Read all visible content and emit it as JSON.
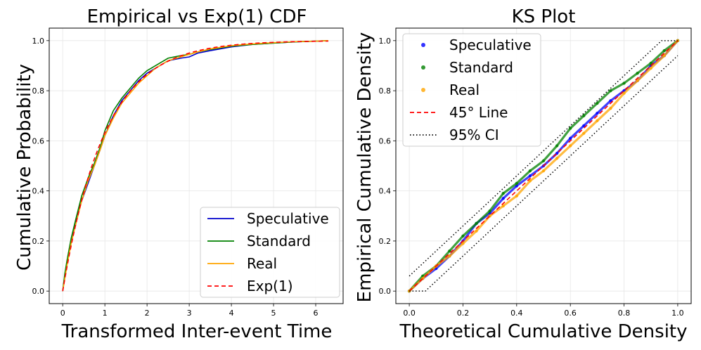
{
  "chart_data": [
    {
      "type": "line",
      "title": "Empirical vs Exp(1) CDF",
      "xlabel": "Transformed Inter-event Time",
      "ylabel": "Cumulative Probability",
      "xlim": [
        -0.32,
        6.65
      ],
      "ylim": [
        -0.05,
        1.05
      ],
      "xticks": [
        0,
        1,
        2,
        3,
        4,
        5,
        6
      ],
      "yticks": [
        0.0,
        0.2,
        0.4,
        0.6,
        0.8,
        1.0
      ],
      "xtick_labels": [
        "0",
        "1",
        "2",
        "3",
        "4",
        "5",
        "6"
      ],
      "ytick_labels": [
        "0.0",
        "0.2",
        "0.4",
        "0.6",
        "0.8",
        "1.0"
      ],
      "grid": true,
      "legend_position": "bottom-right",
      "series": [
        {
          "name": "Speculative",
          "color": "#0000cc",
          "style": "solid",
          "x": [
            0,
            0.05,
            0.1,
            0.2,
            0.3,
            0.45,
            0.6,
            0.75,
            0.9,
            1.0,
            1.2,
            1.4,
            1.6,
            1.8,
            2.0,
            2.2,
            2.5,
            2.8,
            3.0,
            3.2,
            3.5,
            4.0,
            4.5,
            5.0,
            5.5,
            6.0,
            6.3
          ],
          "y": [
            0,
            0.06,
            0.11,
            0.2,
            0.27,
            0.36,
            0.43,
            0.5,
            0.57,
            0.62,
            0.7,
            0.76,
            0.8,
            0.84,
            0.87,
            0.89,
            0.92,
            0.93,
            0.935,
            0.95,
            0.96,
            0.975,
            0.985,
            0.99,
            0.995,
            0.998,
            1.0
          ]
        },
        {
          "name": "Standard",
          "color": "#008000",
          "style": "solid",
          "x": [
            0,
            0.05,
            0.1,
            0.2,
            0.3,
            0.45,
            0.6,
            0.75,
            0.9,
            1.0,
            1.2,
            1.4,
            1.6,
            1.8,
            2.0,
            2.2,
            2.5,
            2.8,
            3.0,
            3.2,
            3.5,
            4.0,
            4.5,
            5.0,
            5.5,
            6.0,
            6.3
          ],
          "y": [
            0,
            0.07,
            0.12,
            0.21,
            0.28,
            0.38,
            0.45,
            0.51,
            0.58,
            0.64,
            0.72,
            0.77,
            0.81,
            0.85,
            0.88,
            0.9,
            0.93,
            0.94,
            0.945,
            0.955,
            0.965,
            0.978,
            0.985,
            0.99,
            0.995,
            0.998,
            1.0
          ]
        },
        {
          "name": "Real",
          "color": "#ffa500",
          "style": "solid",
          "x": [
            0,
            0.05,
            0.1,
            0.2,
            0.3,
            0.45,
            0.6,
            0.75,
            0.9,
            1.0,
            1.2,
            1.4,
            1.6,
            1.8,
            2.0,
            2.2,
            2.5,
            2.8,
            3.0,
            3.2,
            3.5,
            4.0,
            4.5,
            5.0,
            5.5,
            6.0,
            6.3
          ],
          "y": [
            0,
            0.05,
            0.1,
            0.19,
            0.26,
            0.36,
            0.44,
            0.5,
            0.57,
            0.62,
            0.69,
            0.75,
            0.79,
            0.83,
            0.86,
            0.89,
            0.92,
            0.935,
            0.945,
            0.955,
            0.967,
            0.98,
            0.987,
            0.992,
            0.996,
            0.998,
            1.0
          ]
        },
        {
          "name": "Exp(1)",
          "color": "#ff0000",
          "style": "dashed",
          "function": "1 - exp(-x)",
          "x": [
            0,
            6.3
          ]
        }
      ]
    },
    {
      "type": "scatter",
      "title": "KS Plot",
      "xlabel": "Theoretical Cumulative Density",
      "ylabel": "Empirical Cumulative Density",
      "xlim": [
        -0.05,
        1.05
      ],
      "ylim": [
        -0.05,
        1.05
      ],
      "xticks": [
        0.0,
        0.2,
        0.4,
        0.6,
        0.8,
        1.0
      ],
      "yticks": [
        0.0,
        0.2,
        0.4,
        0.6,
        0.8,
        1.0
      ],
      "xtick_labels": [
        "0.0",
        "0.2",
        "0.4",
        "0.6",
        "0.8",
        "1.0"
      ],
      "ytick_labels": [
        "0.0",
        "0.2",
        "0.4",
        "0.6",
        "0.8",
        "1.0"
      ],
      "grid": true,
      "legend_position": "top-left",
      "series": [
        {
          "name": "Speculative",
          "color": "#0000ff",
          "marker": "dot",
          "x": [
            0,
            0.05,
            0.1,
            0.15,
            0.2,
            0.25,
            0.3,
            0.35,
            0.4,
            0.45,
            0.5,
            0.55,
            0.6,
            0.65,
            0.7,
            0.75,
            0.8,
            0.85,
            0.9,
            0.95,
            1.0
          ],
          "y": [
            0,
            0.05,
            0.09,
            0.14,
            0.2,
            0.27,
            0.31,
            0.37,
            0.42,
            0.46,
            0.5,
            0.55,
            0.61,
            0.66,
            0.71,
            0.76,
            0.8,
            0.84,
            0.9,
            0.94,
            1.0
          ]
        },
        {
          "name": "Standard",
          "color": "#008000",
          "marker": "dot",
          "x": [
            0,
            0.05,
            0.1,
            0.15,
            0.2,
            0.25,
            0.3,
            0.35,
            0.4,
            0.45,
            0.5,
            0.55,
            0.6,
            0.65,
            0.7,
            0.75,
            0.8,
            0.85,
            0.9,
            0.95,
            1.0
          ],
          "y": [
            0,
            0.06,
            0.1,
            0.16,
            0.22,
            0.27,
            0.32,
            0.39,
            0.43,
            0.48,
            0.52,
            0.58,
            0.65,
            0.7,
            0.75,
            0.8,
            0.83,
            0.87,
            0.91,
            0.96,
            1.0
          ]
        },
        {
          "name": "Real",
          "color": "#ffa500",
          "marker": "dot",
          "x": [
            0,
            0.05,
            0.1,
            0.15,
            0.2,
            0.25,
            0.3,
            0.35,
            0.4,
            0.45,
            0.5,
            0.55,
            0.6,
            0.65,
            0.7,
            0.75,
            0.8,
            0.85,
            0.9,
            0.95,
            1.0
          ],
          "y": [
            0,
            0.05,
            0.1,
            0.14,
            0.19,
            0.24,
            0.3,
            0.34,
            0.38,
            0.44,
            0.48,
            0.53,
            0.58,
            0.63,
            0.68,
            0.73,
            0.79,
            0.84,
            0.89,
            0.94,
            1.0
          ]
        },
        {
          "name": "45° Line",
          "color": "#ff0000",
          "style": "dashed",
          "x": [
            0,
            1
          ],
          "y": [
            0,
            1
          ]
        },
        {
          "name": "95% CI",
          "color": "#000000",
          "style": "dotted",
          "upper": {
            "x": [
              0,
              0.94,
              1.0
            ],
            "y": [
              0.06,
              1.0,
              1.0
            ]
          },
          "lower": {
            "x": [
              0,
              0.06,
              1.0
            ],
            "y": [
              0,
              0,
              0.94
            ]
          }
        }
      ]
    }
  ]
}
